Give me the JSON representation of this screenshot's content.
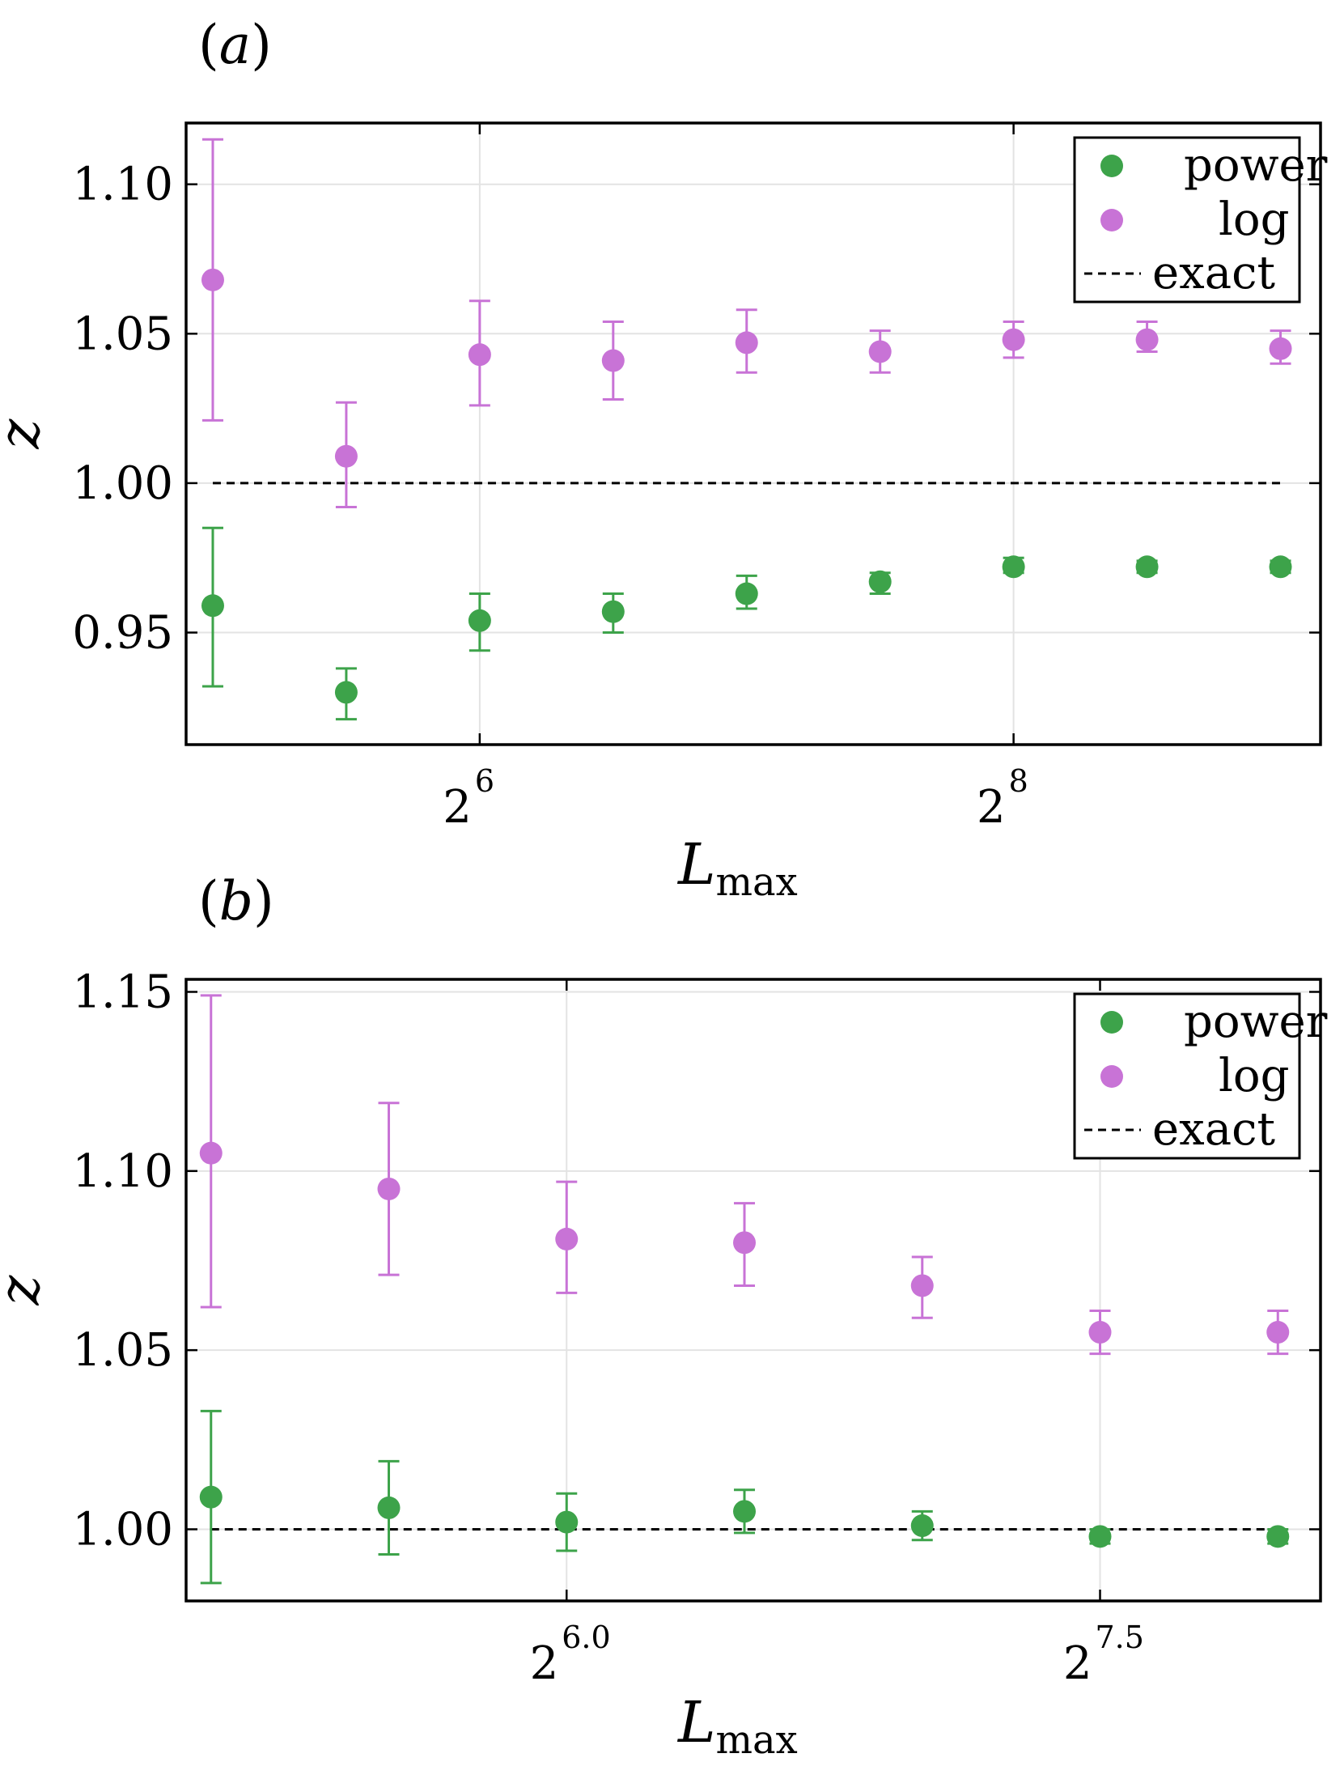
{
  "chart_data": [
    {
      "type": "scatter",
      "panel_label": "(a)",
      "panel_letter": "a",
      "xlabel": "L",
      "xlabel_sub": "max",
      "ylabel": "z",
      "xscale": "log2",
      "x_exponents": [
        5.0,
        5.5,
        6.0,
        6.5,
        7.0,
        7.5,
        8.0,
        8.5,
        9.0
      ],
      "xlim_exponent": [
        4.9,
        9.15
      ],
      "ylim": [
        0.9125,
        1.1205
      ],
      "yticks": [
        0.95,
        1.0,
        1.05,
        1.1
      ],
      "ytick_labels": [
        "0.95",
        "1.00",
        "1.05",
        "1.10"
      ],
      "xticks_exponent": [
        6,
        8
      ],
      "xtick_base": "2",
      "xtick_exponent_labels": [
        "6",
        "8"
      ],
      "exact": 1.0,
      "legend_position": "top-right",
      "series": [
        {
          "name": "power",
          "color": "#3da34a",
          "values": [
            0.959,
            0.93,
            0.954,
            0.957,
            0.963,
            0.967,
            0.972,
            0.972,
            0.972
          ],
          "err_low": [
            0.027,
            0.009,
            0.01,
            0.007,
            0.005,
            0.004,
            0.002,
            0.002,
            0.002
          ],
          "err_high": [
            0.026,
            0.008,
            0.009,
            0.006,
            0.006,
            0.003,
            0.003,
            0.002,
            0.002
          ]
        },
        {
          "name": "log",
          "color": "#c873d6",
          "values": [
            1.068,
            1.009,
            1.043,
            1.041,
            1.047,
            1.044,
            1.048,
            1.048,
            1.045
          ],
          "err_low": [
            0.047,
            0.017,
            0.017,
            0.013,
            0.01,
            0.007,
            0.006,
            0.004,
            0.005
          ],
          "err_high": [
            0.047,
            0.018,
            0.018,
            0.013,
            0.011,
            0.007,
            0.006,
            0.006,
            0.006
          ]
        }
      ],
      "legend": [
        "power",
        "log",
        "exact"
      ]
    },
    {
      "type": "scatter",
      "panel_label": "(b)",
      "panel_letter": "b",
      "xlabel": "L",
      "xlabel_sub": "max",
      "ylabel": "z",
      "xscale": "log2",
      "x_exponents": [
        5.0,
        5.5,
        6.0,
        6.5,
        7.0,
        7.5,
        8.0
      ],
      "xlim_exponent": [
        4.93,
        8.12
      ],
      "ylim": [
        0.98,
        1.1535
      ],
      "yticks": [
        1.0,
        1.05,
        1.1,
        1.15
      ],
      "ytick_labels": [
        "1.00",
        "1.05",
        "1.10",
        "1.15"
      ],
      "xticks_exponent": [
        6.0,
        7.5
      ],
      "xtick_base": "2",
      "xtick_exponent_labels": [
        "6.0",
        "7.5"
      ],
      "exact": 1.0,
      "legend_position": "top-right",
      "series": [
        {
          "name": "power",
          "color": "#3da34a",
          "values": [
            1.009,
            1.006,
            1.002,
            1.005,
            1.001,
            0.998,
            0.998
          ],
          "err_low": [
            0.024,
            0.013,
            0.008,
            0.006,
            0.004,
            0.002,
            0.002
          ],
          "err_high": [
            0.024,
            0.013,
            0.008,
            0.006,
            0.004,
            0.002,
            0.002
          ]
        },
        {
          "name": "log",
          "color": "#c873d6",
          "values": [
            1.105,
            1.095,
            1.081,
            1.08,
            1.068,
            1.055,
            1.055
          ],
          "err_low": [
            0.043,
            0.024,
            0.015,
            0.012,
            0.009,
            0.006,
            0.006
          ],
          "err_high": [
            0.044,
            0.024,
            0.016,
            0.011,
            0.008,
            0.006,
            0.006
          ]
        }
      ],
      "legend": [
        "power",
        "log",
        "exact"
      ]
    }
  ]
}
